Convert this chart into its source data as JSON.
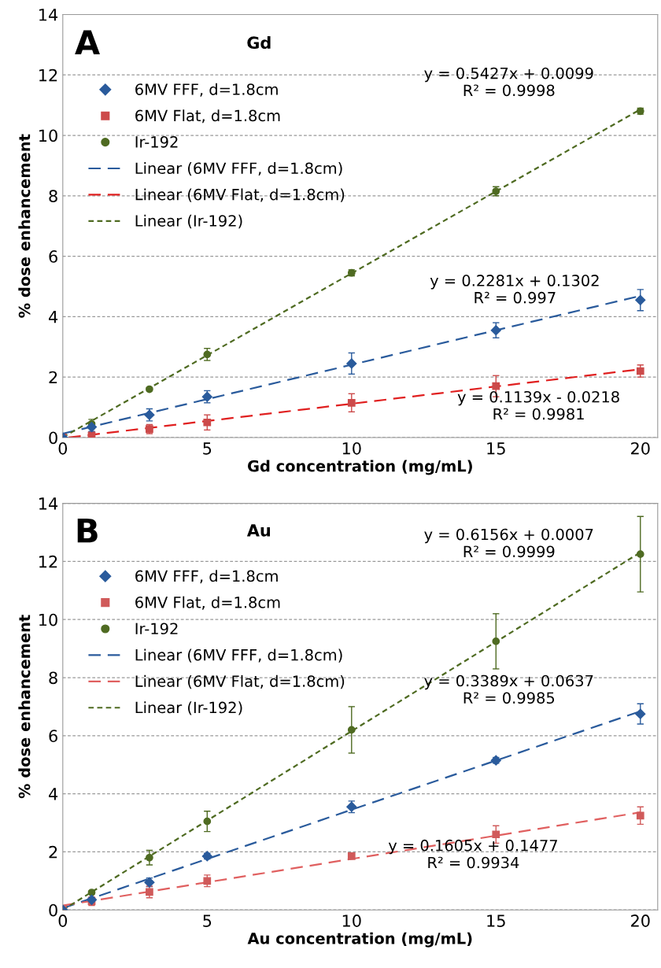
{
  "chart_data": [
    {
      "type": "scatter",
      "title": "Gd",
      "xlabel": "Gd concentration (mg/mL)",
      "ylabel": "% dose enhancement",
      "xlim": [
        0,
        20.6
      ],
      "ylim": [
        0,
        14
      ],
      "xticks": [
        0,
        5,
        10,
        15,
        20
      ],
      "yticks": [
        0,
        2,
        4,
        6,
        8,
        10,
        12,
        14
      ],
      "grid": "y",
      "legend": "top left",
      "annotations": [
        "A",
        "y = 0.5427x + 0.0099\nR² = 0.9998",
        "y = 0.2281x + 0.1302\nR² = 0.997",
        "y = 0.1139x - 0.0218\nR² = 0.9981"
      ],
      "series": [
        {
          "name": "6MV FFF, d=1.8cm",
          "type": "scatter",
          "marker": "diamond",
          "color": "#2a5b9c",
          "x": [
            0,
            1,
            3,
            5,
            10,
            15,
            20
          ],
          "values": [
            0,
            0.35,
            0.75,
            1.35,
            2.45,
            3.55,
            4.55
          ],
          "errors": [
            null,
            0.15,
            0.2,
            0.2,
            0.35,
            0.25,
            0.35
          ]
        },
        {
          "name": "6MV Flat, d=1.8cm",
          "type": "scatter",
          "marker": "square",
          "color": "#cc4a4a",
          "x": [
            0,
            1,
            3,
            5,
            10,
            15,
            20
          ],
          "values": [
            0,
            0.07,
            0.28,
            0.5,
            1.15,
            1.7,
            2.2
          ],
          "errors": [
            null,
            0.05,
            0.15,
            0.25,
            0.3,
            0.35,
            0.2
          ]
        },
        {
          "name": "Ir-192",
          "type": "scatter",
          "marker": "circle",
          "color": "#4f6b22",
          "x": [
            0,
            1,
            3,
            5,
            10,
            15,
            20
          ],
          "values": [
            0,
            0.45,
            1.6,
            2.75,
            5.45,
            8.15,
            10.8
          ],
          "errors": [
            null,
            0.15,
            0.05,
            0.2,
            0.1,
            0.15,
            0.1
          ]
        },
        {
          "name": "Linear (6MV FFF, d=1.8cm)",
          "type": "line",
          "line_style": "dashed",
          "color": "#2a5b9c",
          "x": [
            0,
            20
          ],
          "values": [
            0.13,
            4.69
          ]
        },
        {
          "name": "Linear (6MV Flat, d=1.8cm)",
          "type": "line",
          "line_style": "dashed",
          "color": "#e02020",
          "x": [
            0.2,
            20
          ],
          "values": [
            0.0,
            2.26
          ]
        },
        {
          "name": "Linear (Ir-192)",
          "type": "line",
          "line_style": "dotted",
          "color": "#4f6b22",
          "x": [
            0,
            20
          ],
          "values": [
            0.01,
            10.86
          ]
        }
      ]
    },
    {
      "type": "scatter",
      "title": "Au",
      "xlabel": "Au concentration (mg/mL)",
      "ylabel": "% dose enhancement",
      "xlim": [
        0,
        20.6
      ],
      "ylim": [
        0,
        14
      ],
      "xticks": [
        0,
        5,
        10,
        15,
        20
      ],
      "yticks": [
        0,
        2,
        4,
        6,
        8,
        10,
        12,
        14
      ],
      "grid": "y",
      "legend": "top left",
      "annotations": [
        "B",
        "y = 0.6156x + 0.0007\nR² = 0.9999",
        "y = 0.3389x + 0.0637\nR² = 0.9985",
        "y = 0.1605x + 0.1477\nR² = 0.9934"
      ],
      "series": [
        {
          "name": "6MV FFF, d=1.8cm",
          "type": "scatter",
          "marker": "diamond",
          "color": "#2a5b9c",
          "x": [
            0,
            1,
            3,
            5,
            10,
            15,
            20
          ],
          "values": [
            0,
            0.35,
            0.95,
            1.85,
            3.55,
            5.15,
            6.75
          ],
          "errors": [
            null,
            null,
            0.15,
            0.1,
            0.2,
            0.1,
            0.35
          ]
        },
        {
          "name": "6MV Flat, d=1.8cm",
          "type": "scatter",
          "marker": "square",
          "color": "#d05a5a",
          "x": [
            0,
            1,
            3,
            5,
            10,
            15,
            20
          ],
          "values": [
            0,
            0.3,
            0.62,
            1.0,
            1.85,
            2.6,
            3.25
          ],
          "errors": [
            null,
            0.15,
            0.2,
            0.2,
            0.05,
            0.3,
            0.3
          ]
        },
        {
          "name": "Ir-192",
          "type": "scatter",
          "marker": "circle",
          "color": "#4f6b22",
          "x": [
            0,
            1,
            3,
            5,
            10,
            15,
            20
          ],
          "values": [
            0,
            0.6,
            1.8,
            3.05,
            6.2,
            9.25,
            12.25
          ],
          "errors": [
            null,
            0.05,
            0.25,
            0.35,
            0.8,
            0.95,
            1.3
          ]
        },
        {
          "name": "Linear (6MV FFF, d=1.8cm)",
          "type": "line",
          "line_style": "dashed",
          "color": "#2a5b9c",
          "x": [
            0,
            20
          ],
          "values": [
            0.06,
            6.84
          ]
        },
        {
          "name": "Linear (6MV Flat, d=1.8cm)",
          "type": "line",
          "line_style": "dashed",
          "color": "#e06060",
          "x": [
            0,
            20
          ],
          "values": [
            0.15,
            3.36
          ]
        },
        {
          "name": "Linear (Ir-192)",
          "type": "line",
          "line_style": "dotted",
          "color": "#4f6b22",
          "x": [
            0,
            20
          ],
          "values": [
            0.0,
            12.31
          ]
        }
      ]
    }
  ]
}
